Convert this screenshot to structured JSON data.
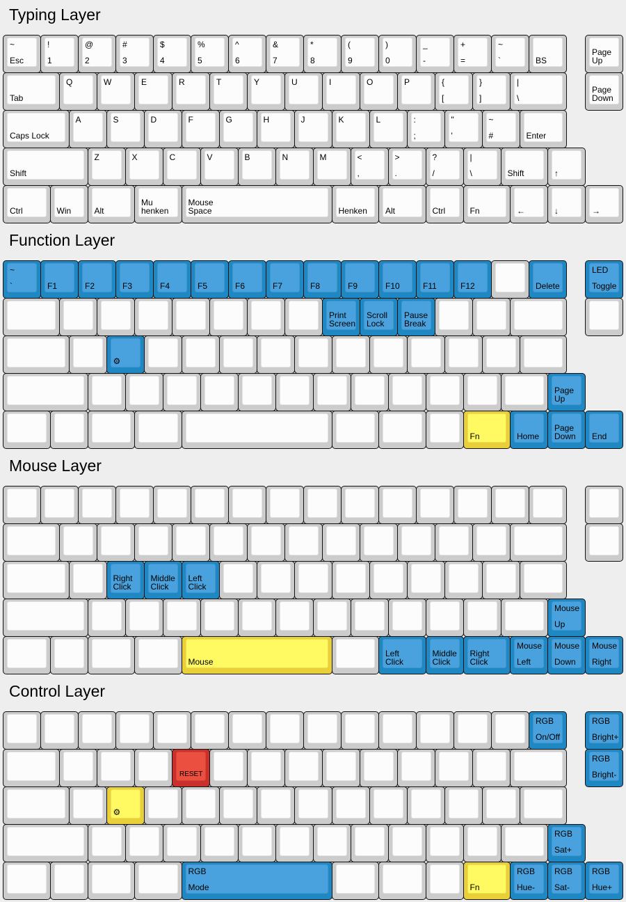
{
  "colors": {
    "background": "#eeeeee",
    "key": "#cccccc",
    "blue": "#49a2dd",
    "yellow": "#fff962",
    "red": "#ea4f3f"
  },
  "layers": [
    {
      "title": "Typing Layer",
      "rows": [
        [
          {
            "t": "~",
            "b": "Esc"
          },
          {
            "t": "!",
            "b": "1"
          },
          {
            "t": "@",
            "b": "2"
          },
          {
            "t": "#",
            "b": "3"
          },
          {
            "t": "$",
            "b": "4"
          },
          {
            "t": "%",
            "b": "5"
          },
          {
            "t": "^",
            "b": "6"
          },
          {
            "t": "&",
            "b": "7"
          },
          {
            "t": "*",
            "b": "8"
          },
          {
            "t": "(",
            "b": "9"
          },
          {
            "t": ")",
            "b": "0"
          },
          {
            "t": "_",
            "b": "-"
          },
          {
            "t": "+",
            "b": "="
          },
          {
            "t": "~",
            "b": "`"
          },
          {
            "b": "BS"
          },
          {
            "b": "Page\nUp"
          }
        ],
        [
          {
            "b": "Tab"
          },
          {
            "t": "Q"
          },
          {
            "t": "W"
          },
          {
            "t": "E"
          },
          {
            "t": "R"
          },
          {
            "t": "T"
          },
          {
            "t": "Y"
          },
          {
            "t": "U"
          },
          {
            "t": "I"
          },
          {
            "t": "O"
          },
          {
            "t": "P"
          },
          {
            "t": "{",
            "b": "["
          },
          {
            "t": "}",
            "b": "]"
          },
          {
            "t": "|",
            "b": "\\"
          },
          {
            "b": "Page\nDown"
          }
        ],
        [
          {
            "b": "Caps Lock"
          },
          {
            "t": "A"
          },
          {
            "t": "S"
          },
          {
            "t": "D"
          },
          {
            "t": "F"
          },
          {
            "t": "G"
          },
          {
            "t": "H"
          },
          {
            "t": "J"
          },
          {
            "t": "K"
          },
          {
            "t": "L"
          },
          {
            "t": ":",
            "b": ";"
          },
          {
            "t": "\"",
            "b": "'"
          },
          {
            "t": "~",
            "b": "#"
          },
          {
            "b": "Enter"
          }
        ],
        [
          {
            "b": "Shift"
          },
          {
            "t": "Z"
          },
          {
            "t": "X"
          },
          {
            "t": "C"
          },
          {
            "t": "V"
          },
          {
            "t": "B"
          },
          {
            "t": "N"
          },
          {
            "t": "M"
          },
          {
            "t": "<",
            "b": ","
          },
          {
            "t": ">",
            "b": "."
          },
          {
            "t": "?",
            "b": "/"
          },
          {
            "t": "|",
            "b": "\\"
          },
          {
            "b": "Shift"
          },
          {
            "b": "↑"
          }
        ],
        [
          {
            "b": "Ctrl"
          },
          {
            "b": "Win"
          },
          {
            "b": "Alt"
          },
          {
            "b": "Mu\nhenken"
          },
          {
            "b": "Mouse\nSpace"
          },
          {
            "b": "Henken"
          },
          {
            "b": "Alt"
          },
          {
            "b": "Ctrl"
          },
          {
            "b": "Fn"
          },
          {
            "b": "←"
          },
          {
            "b": "↓"
          },
          {
            "b": "→"
          }
        ]
      ]
    },
    {
      "title": "Function Layer",
      "rows": [
        [
          {
            "t": "~",
            "b": "`",
            "c": "blue"
          },
          {
            "b": "F1",
            "c": "blue"
          },
          {
            "b": "F2",
            "c": "blue"
          },
          {
            "b": "F3",
            "c": "blue"
          },
          {
            "b": "F4",
            "c": "blue"
          },
          {
            "b": "F5",
            "c": "blue"
          },
          {
            "b": "F6",
            "c": "blue"
          },
          {
            "b": "F7",
            "c": "blue"
          },
          {
            "b": "F8",
            "c": "blue"
          },
          {
            "b": "F9",
            "c": "blue"
          },
          {
            "b": "F10",
            "c": "blue"
          },
          {
            "b": "F11",
            "c": "blue"
          },
          {
            "b": "F12",
            "c": "blue"
          },
          {},
          {
            "b": "Delete",
            "c": "blue"
          },
          {
            "t": "LED",
            "b": "Toggle",
            "c": "blue"
          }
        ],
        [
          {},
          {},
          {},
          {},
          {},
          {},
          {},
          {},
          {
            "b": "Print\nScreen",
            "c": "blue"
          },
          {
            "b": "Scroll\nLock",
            "c": "blue"
          },
          {
            "b": "Pause\nBreak",
            "c": "blue"
          },
          {},
          {},
          {},
          {}
        ],
        [
          {},
          {},
          {
            "icon": "gear",
            "c": "blue"
          },
          {},
          {},
          {},
          {},
          {},
          {},
          {},
          {},
          {},
          {},
          {}
        ],
        [
          {},
          {},
          {},
          {},
          {},
          {},
          {},
          {},
          {},
          {},
          {},
          {},
          {},
          {
            "b": "Page\nUp",
            "c": "blue"
          }
        ],
        [
          {},
          {},
          {},
          {},
          {},
          {},
          {},
          {},
          {
            "b": "Fn",
            "c": "yellow"
          },
          {
            "b": "Home",
            "c": "blue"
          },
          {
            "b": "Page\nDown",
            "c": "blue"
          },
          {
            "b": "End",
            "c": "blue"
          }
        ]
      ]
    },
    {
      "title": "Mouse Layer",
      "rows": [
        [
          {},
          {},
          {},
          {},
          {},
          {},
          {},
          {},
          {},
          {},
          {},
          {},
          {},
          {},
          {},
          {}
        ],
        [
          {},
          {},
          {},
          {},
          {},
          {},
          {},
          {},
          {},
          {},
          {},
          {},
          {},
          {},
          {}
        ],
        [
          {},
          {},
          {
            "b": "Right\nClick",
            "c": "blue"
          },
          {
            "b": "Middle\nClick",
            "c": "blue"
          },
          {
            "b": "Left\nClick",
            "c": "blue"
          },
          {},
          {},
          {},
          {},
          {},
          {},
          {},
          {},
          {}
        ],
        [
          {},
          {},
          {},
          {},
          {},
          {},
          {},
          {},
          {},
          {},
          {},
          {},
          {},
          {
            "t": "Mouse",
            "b": "Up",
            "c": "blue"
          }
        ],
        [
          {},
          {},
          {},
          {},
          {
            "b": "Mouse",
            "c": "yellow"
          },
          {},
          {
            "b": "Left\nClick",
            "c": "blue"
          },
          {
            "b": "Middle\nClick",
            "c": "blue"
          },
          {
            "b": "Right\nClick",
            "c": "blue"
          },
          {
            "t": "Mouse",
            "b": "Left",
            "c": "blue"
          },
          {
            "t": "Mouse",
            "b": "Down",
            "c": "blue"
          },
          {
            "t": "Mouse",
            "b": "Right",
            "c": "blue"
          }
        ]
      ]
    },
    {
      "title": "Control Layer",
      "rows": [
        [
          {},
          {},
          {},
          {},
          {},
          {},
          {},
          {},
          {},
          {},
          {},
          {},
          {},
          {},
          {
            "t": "RGB",
            "b": "On/Off",
            "c": "blue"
          },
          {
            "t": "RGB",
            "b": "Bright+",
            "c": "blue"
          }
        ],
        [
          {},
          {},
          {},
          {},
          {
            "b": "RESET",
            "c": "red"
          },
          {},
          {},
          {},
          {},
          {},
          {},
          {},
          {},
          {},
          {
            "t": "RGB",
            "b": "Bright-",
            "c": "blue"
          }
        ],
        [
          {},
          {},
          {
            "icon": "gear",
            "c": "yellow"
          },
          {},
          {},
          {},
          {},
          {},
          {},
          {},
          {},
          {},
          {},
          {}
        ],
        [
          {},
          {},
          {},
          {},
          {},
          {},
          {},
          {},
          {},
          {},
          {},
          {},
          {},
          {
            "t": "RGB",
            "b": "Sat+",
            "c": "blue"
          }
        ],
        [
          {},
          {},
          {},
          {},
          {
            "t": "RGB",
            "b": "Mode",
            "c": "blue"
          },
          {},
          {},
          {},
          {
            "b": "Fn",
            "c": "yellow"
          },
          {
            "t": "RGB",
            "b": "Hue-",
            "c": "blue"
          },
          {
            "t": "RGB",
            "b": "Sat-",
            "c": "blue"
          },
          {
            "t": "RGB",
            "b": "Hue+",
            "c": "blue"
          }
        ]
      ]
    }
  ]
}
